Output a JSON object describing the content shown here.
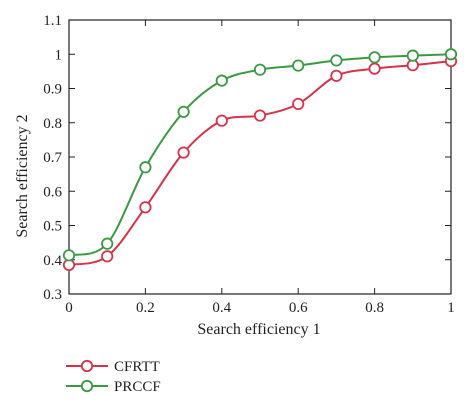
{
  "chart_data": {
    "type": "line",
    "xlabel": "Search efficiency 1",
    "ylabel": "Search efficiency 2",
    "xlim": [
      0,
      1
    ],
    "ylim": [
      0.3,
      1.1
    ],
    "xticks": [
      "0",
      "0.2",
      "0.4",
      "0.6",
      "0.8",
      "1"
    ],
    "xtick_values": [
      0,
      0.2,
      0.4,
      0.6,
      0.8,
      1
    ],
    "yticks": [
      "0.3",
      "0.4",
      "0.5",
      "0.6",
      "0.7",
      "0.8",
      "0.9",
      "1",
      "1.1"
    ],
    "ytick_values": [
      0.3,
      0.4,
      0.5,
      0.6,
      0.7,
      0.8,
      0.9,
      1.0,
      1.1
    ],
    "grid": false,
    "legend_position": "bottom-left, below plot",
    "x": [
      0,
      0.1,
      0.2,
      0.3,
      0.4,
      0.5,
      0.6,
      0.7,
      0.8,
      0.9,
      1.0
    ],
    "series": [
      {
        "name": "CFRTT",
        "color": "#d6334a",
        "marker": "open-circle",
        "values": [
          0.385,
          0.41,
          0.553,
          0.713,
          0.806,
          0.821,
          0.855,
          0.937,
          0.958,
          0.968,
          0.98
        ]
      },
      {
        "name": "PRCCF",
        "color": "#3a9a44",
        "marker": "open-circle",
        "values": [
          0.413,
          0.447,
          0.67,
          0.832,
          0.923,
          0.955,
          0.967,
          0.982,
          0.991,
          0.996,
          1.0
        ]
      }
    ]
  }
}
